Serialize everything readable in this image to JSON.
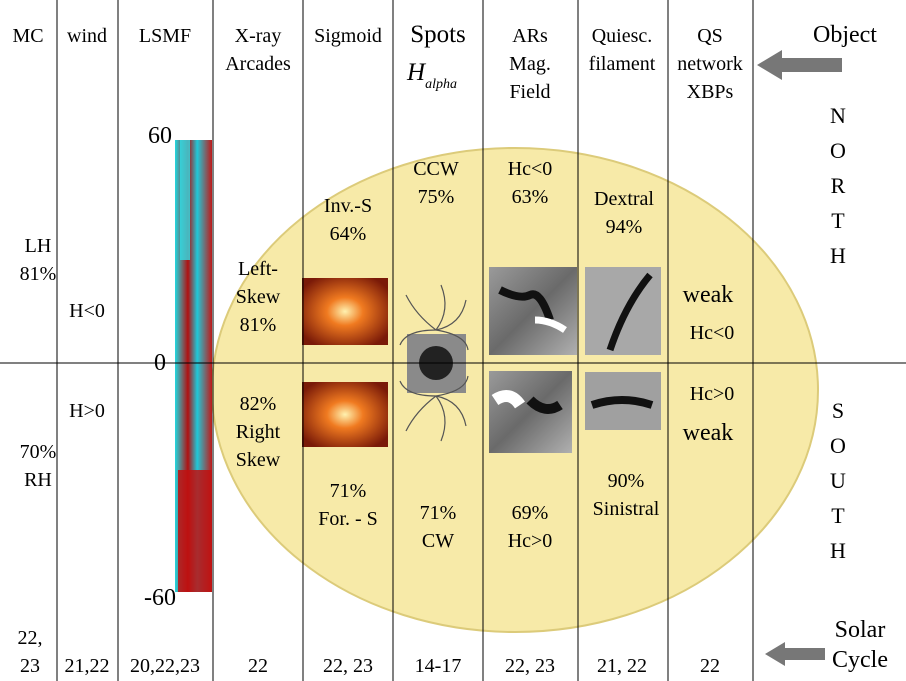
{
  "columns": [
    {
      "header": [
        "MC"
      ],
      "cycle": [
        "22,",
        "23"
      ]
    },
    {
      "header": [
        "wind"
      ],
      "cycle": [
        "21,22"
      ]
    },
    {
      "header": [
        "LSMF"
      ],
      "cycle": [
        "20,22,23"
      ]
    },
    {
      "header": [
        "X-ray",
        "Arcades"
      ],
      "cycle": [
        "22"
      ]
    },
    {
      "header": [
        "Sigmoid"
      ],
      "cycle": [
        "22, 23"
      ]
    },
    {
      "header": [
        "Spots"
      ],
      "symbol": "H",
      "subscript": "alpha",
      "cycle": [
        "14-17"
      ]
    },
    {
      "header": [
        "ARs",
        "Mag.",
        "Field"
      ],
      "cycle": [
        "22, 23"
      ]
    },
    {
      "header": [
        "Quiesc.",
        "filament"
      ],
      "cycle": [
        "21, 22"
      ]
    },
    {
      "header": [
        "QS",
        "network",
        "XBPs"
      ],
      "cycle": [
        "22"
      ]
    }
  ],
  "object_label": "Object",
  "solar_cycle_label": [
    "Solar",
    "Cycle"
  ],
  "north_letters": [
    "N",
    "O",
    "R",
    "T",
    "H"
  ],
  "south_letters": [
    "S",
    "O",
    "U",
    "T",
    "H"
  ],
  "lsmf_ticks": [
    "60",
    "0",
    "-60"
  ],
  "north_annotations": [
    {
      "lines": [
        "LH",
        "81%"
      ]
    },
    {
      "lines": [
        "H<0"
      ]
    },
    {
      "lines": [
        "Left-",
        "Skew",
        "81%"
      ]
    },
    {
      "lines": [
        "Inv.-S",
        "64%"
      ]
    },
    {
      "lines": [
        "CCW",
        "75%"
      ]
    },
    {
      "lines": [
        "Hc<0",
        "63%"
      ]
    },
    {
      "lines": [
        "Dextral",
        "94%"
      ]
    },
    {
      "lines": [
        "weak"
      ]
    },
    {
      "lines": [
        "Hc<0"
      ]
    }
  ],
  "south_annotations": [
    {
      "lines": [
        "H>0"
      ]
    },
    {
      "lines": [
        "70%",
        "RH"
      ]
    },
    {
      "lines": [
        "82%",
        "Right",
        "Skew"
      ]
    },
    {
      "lines": [
        "71%",
        "For. - S"
      ]
    },
    {
      "lines": [
        "71%",
        "CW"
      ]
    },
    {
      "lines": [
        "69%",
        "Hc>0"
      ]
    },
    {
      "lines": [
        "90%",
        "Sinistral"
      ]
    },
    {
      "lines": [
        "Hc>0"
      ]
    },
    {
      "lines": [
        "weak"
      ]
    }
  ]
}
